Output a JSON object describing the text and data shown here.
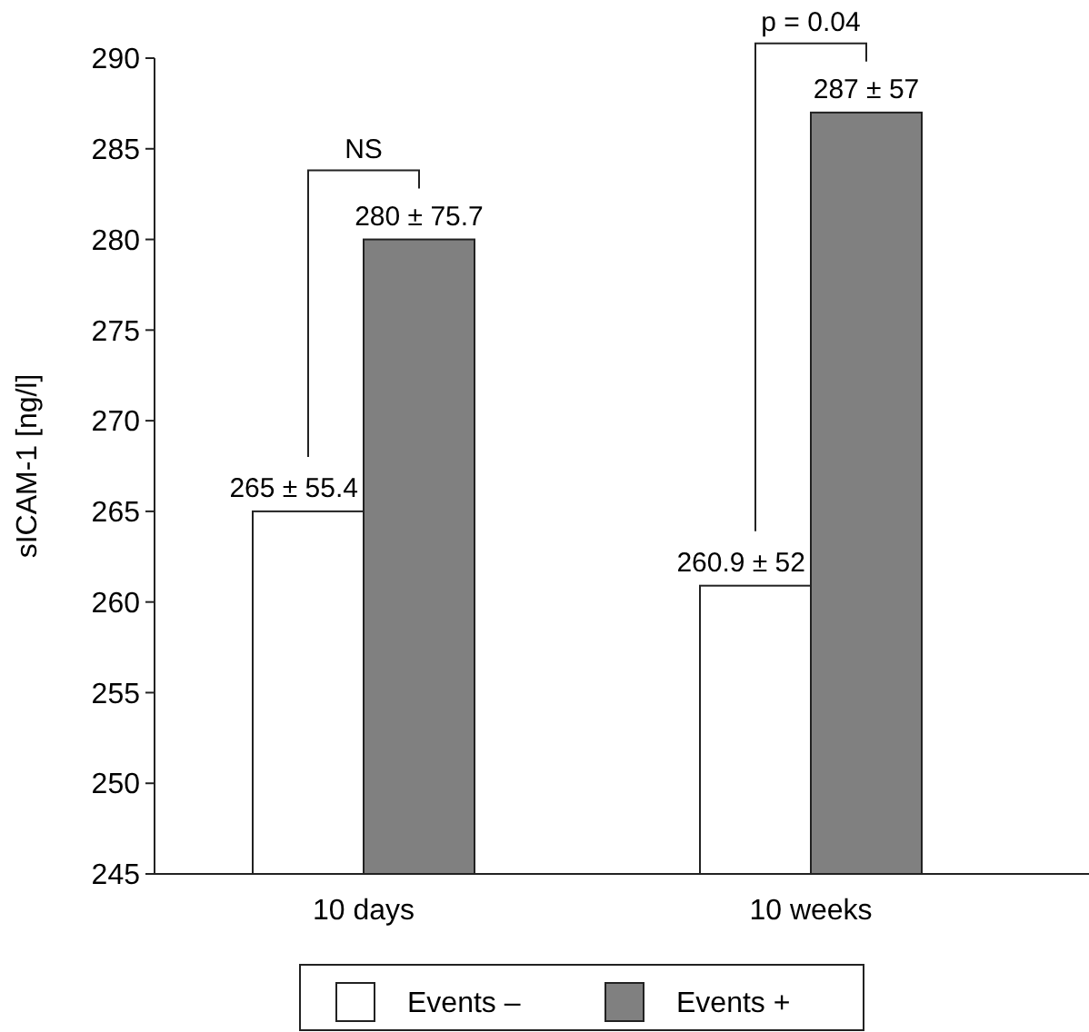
{
  "chart_data": {
    "type": "bar",
    "ylabel": "sICAM-1 [ng/l]",
    "categories": [
      "10 days",
      "10 weeks"
    ],
    "series": [
      {
        "name": "Events –",
        "color": "#ffffff",
        "values": [
          265,
          260.9
        ],
        "value_labels": [
          "265 ± 55.4",
          "260.9 ± 52"
        ]
      },
      {
        "name": "Events +",
        "color": "#808080",
        "values": [
          280,
          287
        ],
        "value_labels": [
          "280 ± 75.7",
          "287 ± 57"
        ]
      }
    ],
    "ylim": [
      245,
      290
    ],
    "yticks": [
      245,
      250,
      255,
      260,
      265,
      270,
      275,
      280,
      285,
      290
    ],
    "grid": false,
    "legend": "bottom",
    "annotations": [
      "NS",
      "p = 0.04"
    ]
  }
}
